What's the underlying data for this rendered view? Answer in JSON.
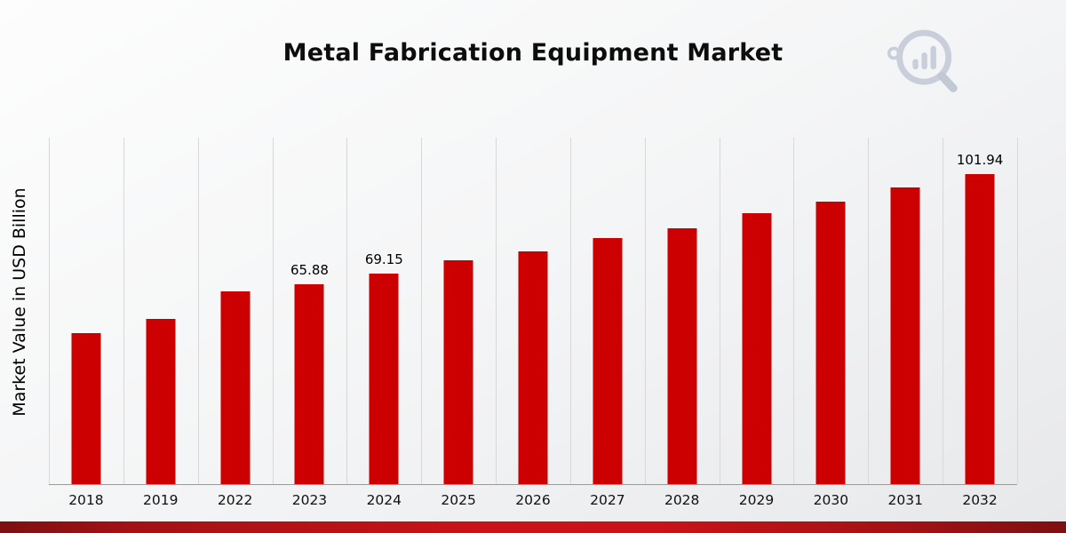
{
  "page": {
    "title": "Metal Fabrication Equipment Market"
  },
  "logo": {
    "name": "magnifier-bar-chart-logo",
    "color": "#c9cedb"
  },
  "chart_data": {
    "type": "bar",
    "title": "Metal Fabrication Equipment Market",
    "xlabel": "",
    "ylabel": "Market Value in USD Billion",
    "bar_color": "#cc0000",
    "ylim": [
      0,
      114
    ],
    "grid": "vertical",
    "legend": "none",
    "categories": [
      "2018",
      "2019",
      "2022",
      "2023",
      "2024",
      "2025",
      "2026",
      "2027",
      "2028",
      "2029",
      "2030",
      "2031",
      "2032"
    ],
    "values": [
      49.7,
      54.5,
      63.4,
      65.88,
      69.15,
      73.6,
      76.5,
      80.9,
      84.1,
      89.1,
      92.9,
      97.6,
      101.94
    ],
    "data_labels": [
      "",
      "",
      "",
      "65.88",
      "69.15",
      "",
      "",
      "",
      "",
      "",
      "",
      "",
      "101.94"
    ]
  }
}
